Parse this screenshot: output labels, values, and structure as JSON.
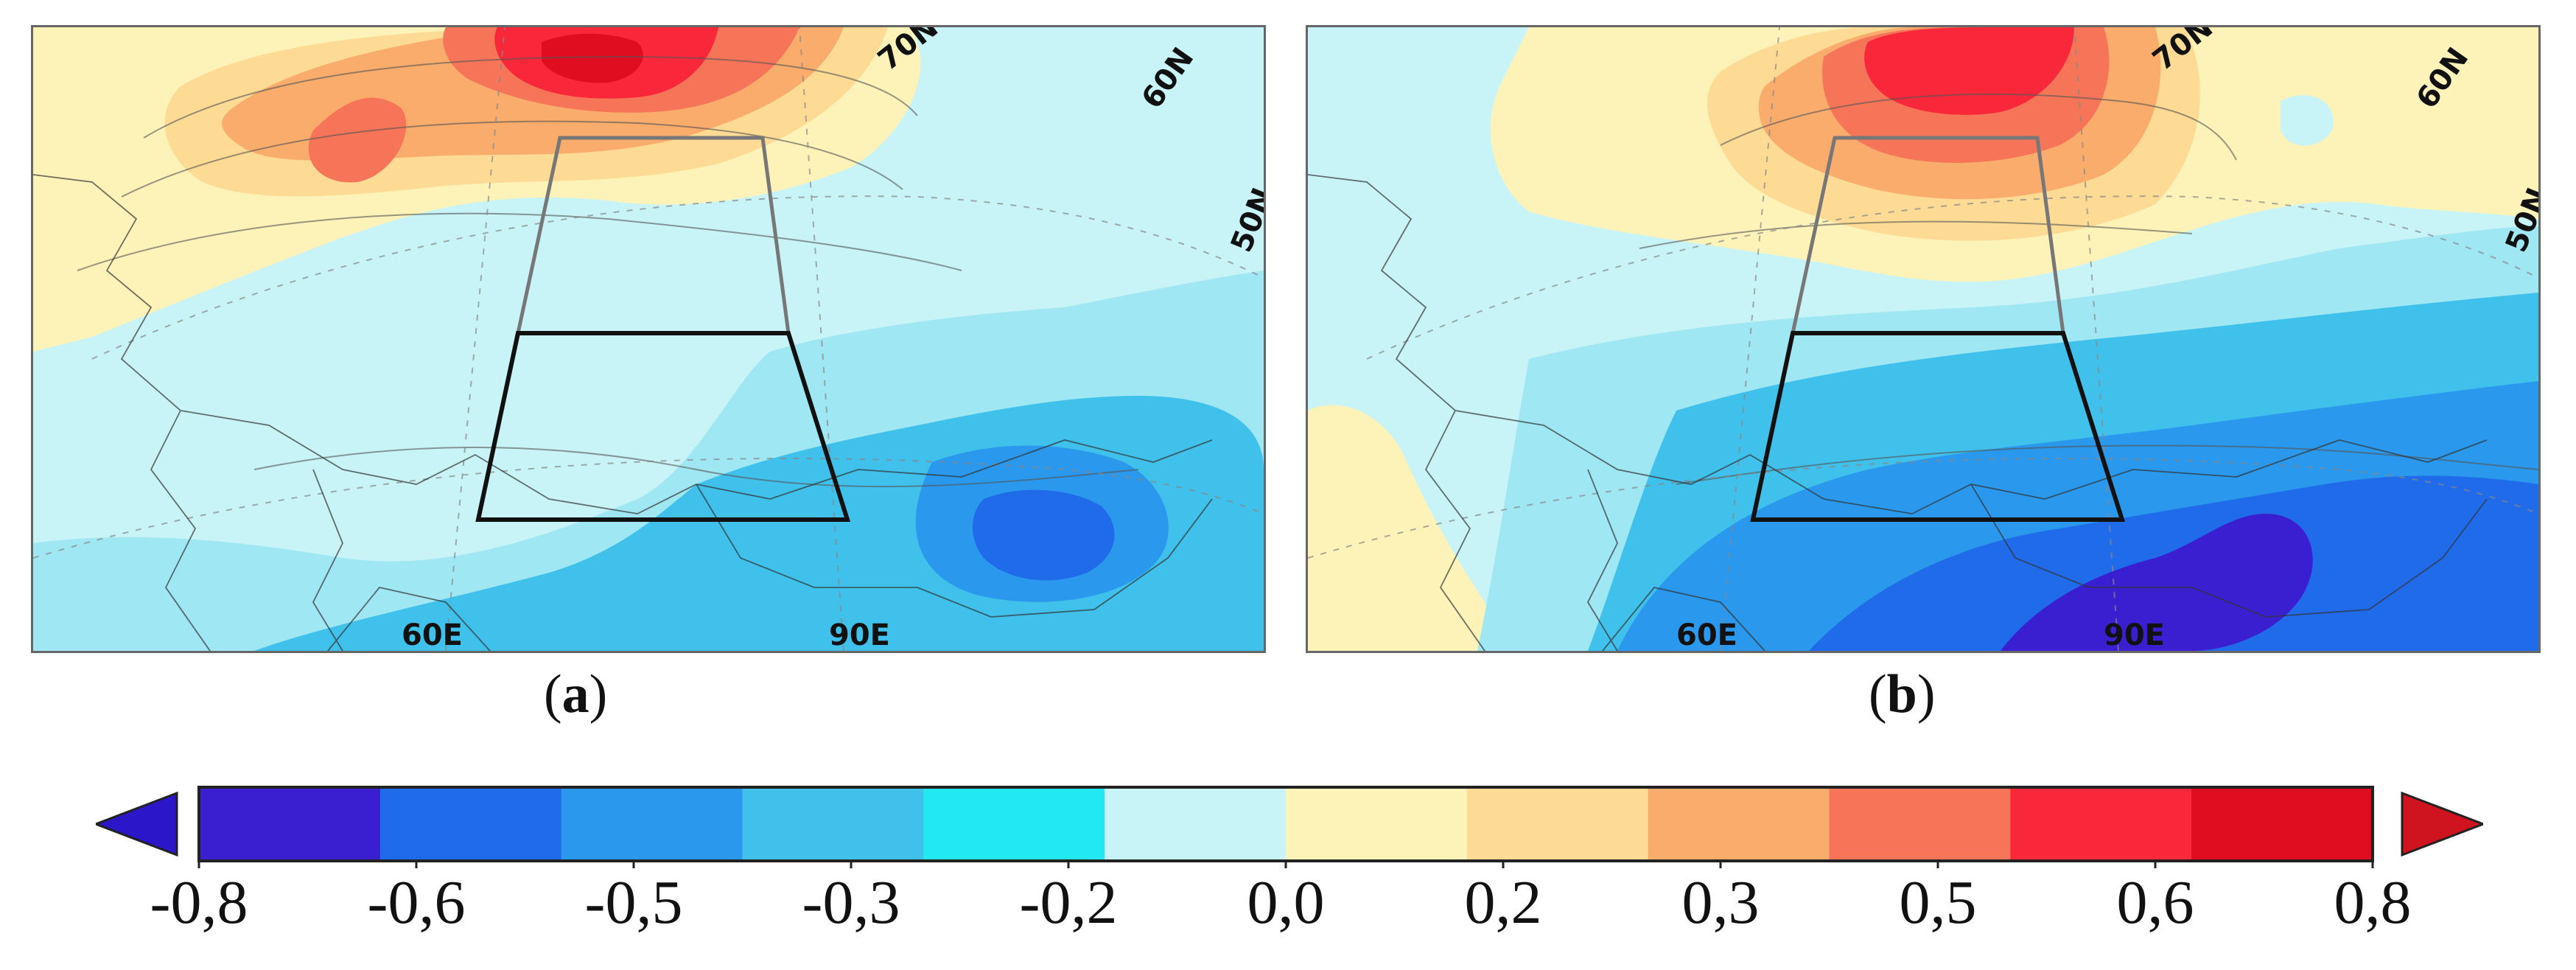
{
  "panels": [
    {
      "id": "a",
      "label": "a",
      "latitude_labels": [
        "70N",
        "60N",
        "50N"
      ],
      "longitude_labels": [
        "60E",
        "90E"
      ]
    },
    {
      "id": "b",
      "label": "b",
      "latitude_labels": [
        "70N",
        "60N",
        "50N"
      ],
      "longitude_labels": [
        "60E",
        "90E"
      ]
    }
  ],
  "colorbar": {
    "tick_labels": [
      "-0,8",
      "-0,6",
      "-0,5",
      "-0,3",
      "-0,2",
      "0,0",
      "0,2",
      "0,3",
      "0,5",
      "0,6",
      "0,8"
    ],
    "bin_colors": [
      "#3a1fd0",
      "#1f6bea",
      "#2a98ec",
      "#3fc1ec",
      "#22e8f3",
      "#c8f4f7",
      "#fdf3b8",
      "#fddb94",
      "#f9ac6c",
      "#f67559",
      "#f8283a",
      "#df0d1f"
    ],
    "under_color": "#2b17c9",
    "over_color": "#d0141f"
  }
}
